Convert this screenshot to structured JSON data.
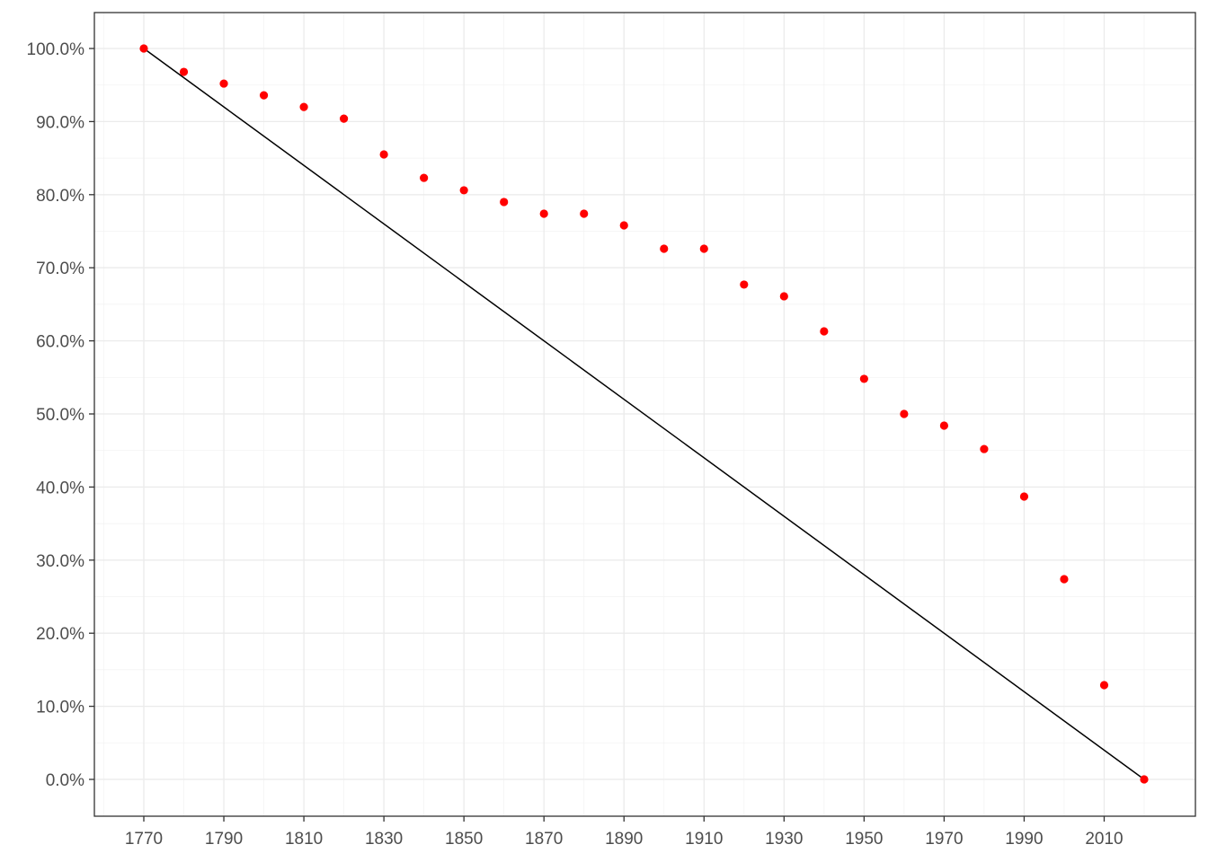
{
  "chart_data": {
    "type": "scatter",
    "title": "",
    "xlabel": "",
    "ylabel": "",
    "xlim": [
      1770,
      2020
    ],
    "ylim": [
      0,
      100
    ],
    "x_ticks": [
      1770,
      1790,
      1810,
      1830,
      1850,
      1870,
      1890,
      1910,
      1930,
      1950,
      1970,
      1990,
      2010
    ],
    "y_ticks": [
      0,
      10,
      20,
      30,
      40,
      50,
      60,
      70,
      80,
      90,
      100
    ],
    "y_tick_labels": [
      "0.0%",
      "10.0%",
      "20.0%",
      "30.0%",
      "40.0%",
      "50.0%",
      "60.0%",
      "70.0%",
      "80.0%",
      "90.0%",
      "100.0%"
    ],
    "grid": true,
    "series": [
      {
        "kind": "points",
        "color": "#ff0000",
        "x": [
          1770,
          1780,
          1790,
          1800,
          1810,
          1820,
          1830,
          1840,
          1850,
          1860,
          1870,
          1880,
          1890,
          1900,
          1910,
          1920,
          1930,
          1940,
          1950,
          1960,
          1970,
          1980,
          1990,
          2000,
          2010,
          2020
        ],
        "y": [
          100.0,
          96.8,
          95.2,
          93.6,
          92.0,
          90.4,
          85.5,
          82.3,
          80.6,
          79.0,
          77.4,
          77.4,
          75.8,
          72.6,
          72.6,
          67.7,
          66.1,
          61.3,
          54.8,
          50.0,
          48.4,
          45.2,
          38.7,
          27.4,
          12.9,
          0.0
        ]
      },
      {
        "kind": "line",
        "color": "#000000",
        "x": [
          1770,
          2020
        ],
        "y": [
          100.0,
          0.0
        ]
      }
    ]
  }
}
